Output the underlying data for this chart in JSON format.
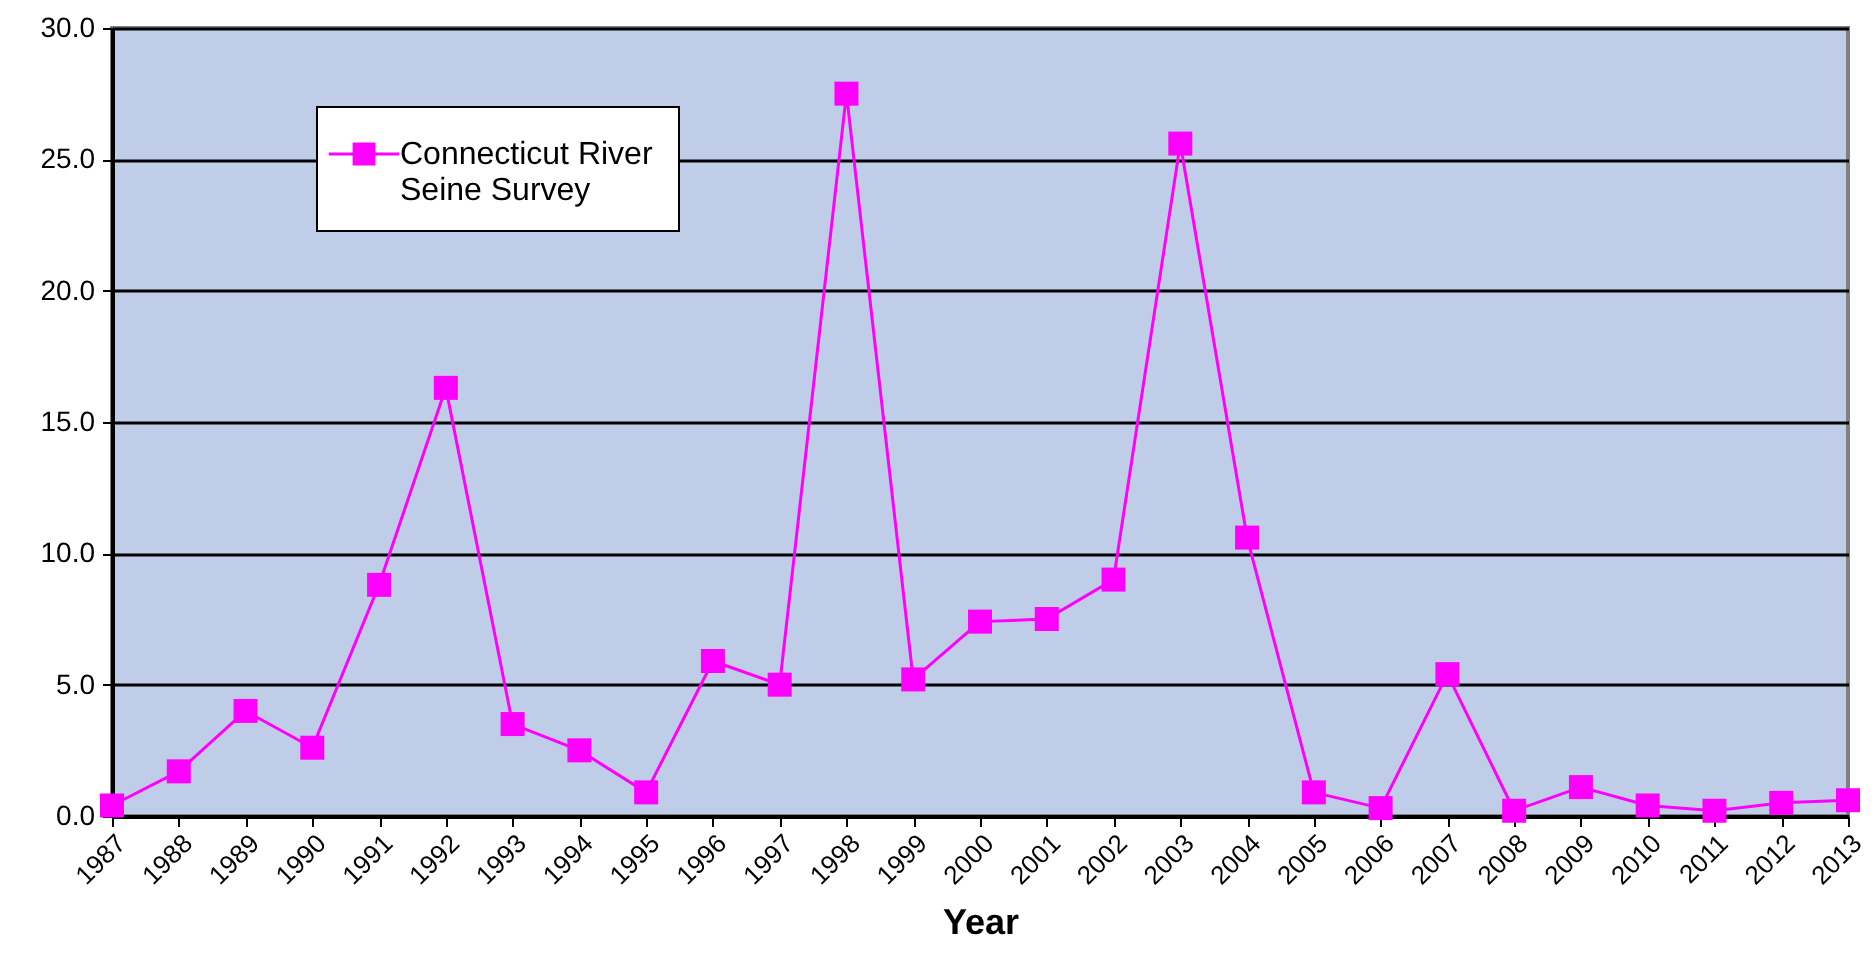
{
  "chart_data": {
    "type": "line",
    "xlabel": "Year",
    "categories": [
      "1987",
      "1988",
      "1989",
      "1990",
      "1991",
      "1992",
      "1993",
      "1994",
      "1995",
      "1996",
      "1997",
      "1998",
      "1999",
      "2000",
      "2001",
      "2002",
      "2003",
      "2004",
      "2005",
      "2006",
      "2007",
      "2008",
      "2009",
      "2010",
      "2011",
      "2012",
      "2013"
    ],
    "series": [
      {
        "name": "Connecticut River Seine Survey",
        "color": "#ff00ff",
        "values": [
          0.4,
          1.7,
          4.0,
          2.6,
          8.8,
          16.3,
          3.5,
          2.5,
          0.9,
          5.9,
          5.0,
          27.5,
          5.2,
          7.4,
          7.5,
          9.0,
          25.6,
          10.6,
          0.9,
          0.3,
          5.4,
          0.2,
          1.1,
          0.4,
          0.2,
          0.5,
          0.6
        ]
      }
    ],
    "ylim": [
      0,
      30
    ],
    "yticks": [
      {
        "value": 0,
        "label": "0.0"
      },
      {
        "value": 5,
        "label": "5.0"
      },
      {
        "value": 10,
        "label": "10.0"
      },
      {
        "value": 15,
        "label": "15.0"
      },
      {
        "value": 20,
        "label": "20.0"
      },
      {
        "value": 25,
        "label": "25.0"
      },
      {
        "value": 30,
        "label": "30.0"
      }
    ],
    "grid": "y",
    "legend": "top left",
    "marker": "square",
    "line_style": "solid"
  }
}
